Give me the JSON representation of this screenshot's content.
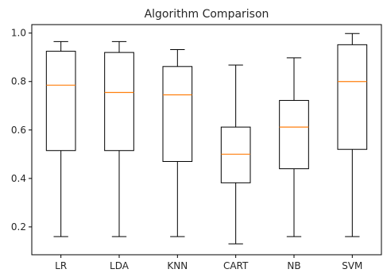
{
  "chart_data": {
    "type": "box",
    "title": "Algorithm Comparison",
    "xlabel": "",
    "ylabel": "",
    "categories": [
      "LR",
      "LDA",
      "KNN",
      "CART",
      "NB",
      "SVM"
    ],
    "y_ticks": [
      "0.2",
      "0.4",
      "0.6",
      "0.8",
      "1.0"
    ],
    "ylim": [
      0.085,
      1.035
    ],
    "grid": false,
    "boxes": [
      {
        "label": "LR",
        "whisker_low": 0.16,
        "q1": 0.515,
        "median": 0.785,
        "q3": 0.925,
        "whisker_high": 0.965
      },
      {
        "label": "LDA",
        "whisker_low": 0.16,
        "q1": 0.515,
        "median": 0.755,
        "q3": 0.92,
        "whisker_high": 0.965
      },
      {
        "label": "KNN",
        "whisker_low": 0.16,
        "q1": 0.47,
        "median": 0.745,
        "q3": 0.862,
        "whisker_high": 0.932
      },
      {
        "label": "CART",
        "whisker_low": 0.13,
        "q1": 0.382,
        "median": 0.5,
        "q3": 0.612,
        "whisker_high": 0.868
      },
      {
        "label": "NB",
        "whisker_low": 0.16,
        "q1": 0.44,
        "median": 0.612,
        "q3": 0.722,
        "whisker_high": 0.898
      },
      {
        "label": "SVM",
        "whisker_low": 0.16,
        "q1": 0.52,
        "median": 0.8,
        "q3": 0.952,
        "whisker_high": 0.998
      }
    ],
    "colors": {
      "box": "#000000",
      "median": "#ff7f0e",
      "axes": "#000000"
    }
  }
}
